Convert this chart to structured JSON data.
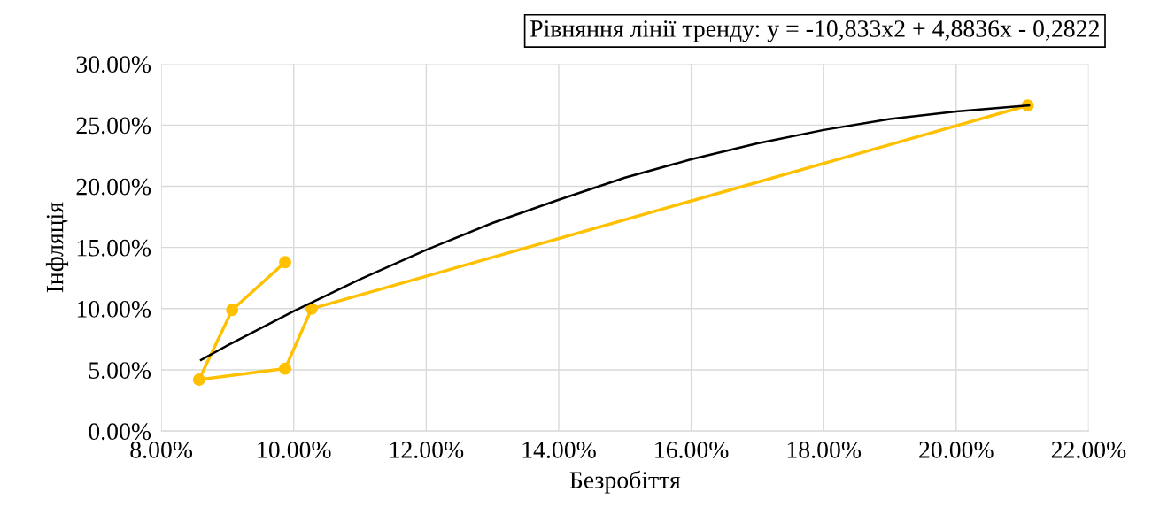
{
  "chart_data": {
    "type": "line",
    "xlabel": "Безробіття",
    "ylabel": "Інфляція",
    "annotations": [
      "Рівняння лінії тренду: y = -10,833x2 + 4,8836x - 0,2822"
    ],
    "series": [
      {
        "color": "#ffc000",
        "marker": "circle",
        "x": [
          9.87,
          9.07,
          8.57,
          9.87,
          10.27,
          21.08
        ],
        "values": [
          13.8,
          9.9,
          4.2,
          5.1,
          10.0,
          26.6
        ]
      },
      {
        "color": "#000000",
        "marker": "none",
        "x": [
          8.6,
          9,
          10,
          11,
          12,
          13,
          14,
          15,
          16,
          17,
          18,
          19,
          20,
          21.1
        ],
        "values": [
          5.8,
          7.0,
          9.8,
          12.4,
          14.8,
          17.0,
          18.9,
          20.7,
          22.2,
          23.5,
          24.6,
          25.5,
          26.1,
          26.6
        ]
      }
    ],
    "xlim": [
      8,
      22
    ],
    "ylim": [
      0,
      30
    ],
    "xticks": [
      {
        "value": 8,
        "label": "8.00%"
      },
      {
        "value": 10,
        "label": "10.00%"
      },
      {
        "value": 12,
        "label": "12.00%"
      },
      {
        "value": 14,
        "label": "14.00%"
      },
      {
        "value": 16,
        "label": "16.00%"
      },
      {
        "value": 18,
        "label": "18.00%"
      },
      {
        "value": 20,
        "label": "20.00%"
      },
      {
        "value": 22,
        "label": "22.00%"
      }
    ],
    "yticks": [
      {
        "value": 0,
        "label": "0.00%"
      },
      {
        "value": 5,
        "label": "5.00%"
      },
      {
        "value": 10,
        "label": "10.00%"
      },
      {
        "value": 15,
        "label": "15.00%"
      },
      {
        "value": 20,
        "label": "20.00%"
      },
      {
        "value": 25,
        "label": "25.00%"
      },
      {
        "value": 30,
        "label": "30.00%"
      }
    ],
    "grid": true
  }
}
